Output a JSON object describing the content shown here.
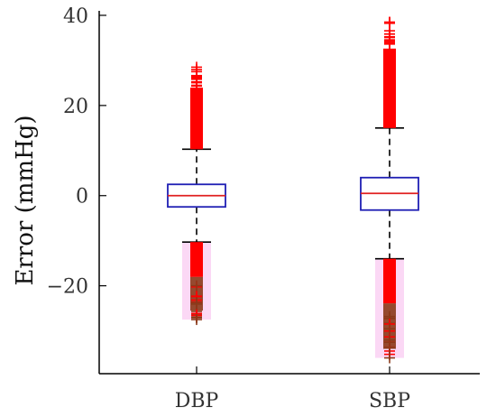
{
  "chart_data": {
    "type": "box",
    "title": "",
    "xlabel": "",
    "ylabel": "Error (mmHg)",
    "ylim": [
      -39.5,
      41
    ],
    "yticks": [
      {
        "value": 40,
        "label": "40"
      },
      {
        "value": 20,
        "label": "20"
      },
      {
        "value": 0,
        "label": "0"
      },
      {
        "value": -20,
        "label": "−20"
      }
    ],
    "categories": [
      "DBP",
      "SBP"
    ],
    "grid": false,
    "boxes": [
      {
        "category": "DBP",
        "q1": -2.5,
        "median": 0,
        "q3": 2.5,
        "whisker_low": -10.3,
        "whisker_high": 10.3,
        "outliers_high_range": [
          10.3,
          28.5
        ],
        "outliers_low_range": [
          -27.5,
          -10.3
        ]
      },
      {
        "category": "SBP",
        "q1": -3.2,
        "median": 0.5,
        "q3": 4.0,
        "whisker_low": -14.0,
        "whisker_high": 15.0,
        "outliers_high_range": [
          15.0,
          38.5
        ],
        "outliers_low_range": [
          -36.0,
          -14.0
        ]
      }
    ],
    "colors": {
      "box": "#1f1fb4",
      "median": "#e02020",
      "whisker": "#000000",
      "outlier": "#ff0000",
      "outlier_dark": "#8b3a1a",
      "outlier_halo": "#f7b8ec"
    }
  }
}
